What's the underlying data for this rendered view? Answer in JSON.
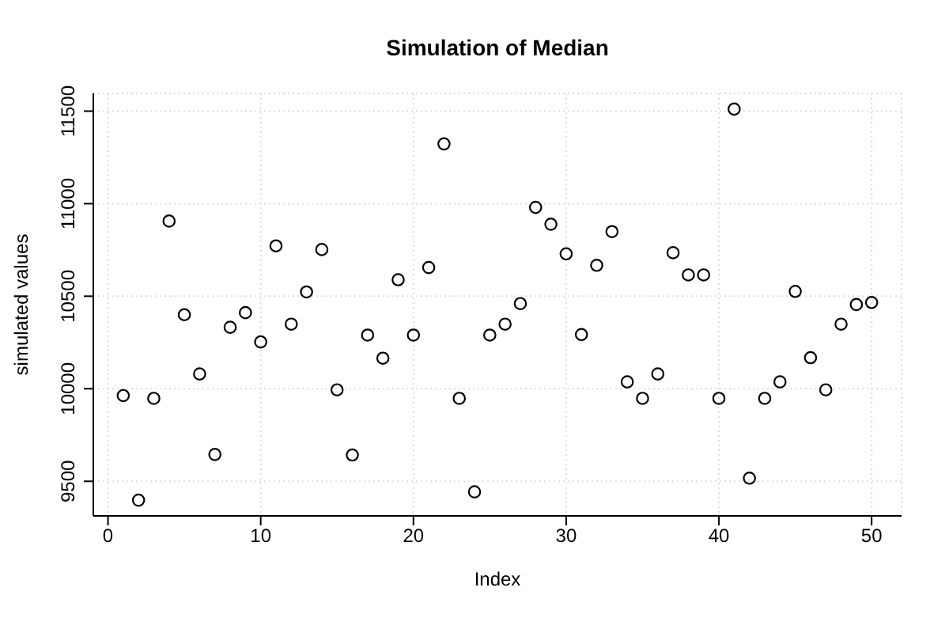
{
  "chart_data": {
    "type": "scatter",
    "title": "Simulation of Median",
    "xlabel": "Index",
    "ylabel": "simulated values",
    "x": [
      1,
      2,
      3,
      4,
      5,
      6,
      7,
      8,
      9,
      10,
      11,
      12,
      13,
      14,
      15,
      16,
      17,
      18,
      19,
      20,
      21,
      22,
      23,
      24,
      25,
      26,
      27,
      28,
      29,
      30,
      31,
      32,
      33,
      34,
      35,
      36,
      37,
      38,
      39,
      40,
      41,
      42,
      43,
      44,
      45,
      46,
      47,
      48,
      49,
      50
    ],
    "values": [
      9963,
      9398,
      9948,
      10906,
      10400,
      10080,
      9645,
      10332,
      10411,
      10253,
      10772,
      10349,
      10523,
      10752,
      9994,
      9642,
      10290,
      10165,
      10589,
      10290,
      10655,
      11323,
      9948,
      9443,
      10290,
      10349,
      10460,
      10980,
      10889,
      10729,
      10293,
      10667,
      10849,
      10037,
      9948,
      10080,
      10735,
      10615,
      10615,
      9948,
      11511,
      9517,
      9948,
      10037,
      10526,
      10168,
      9994,
      10349,
      10455,
      10466
    ],
    "color": "#000000",
    "marker": "circle",
    "grid": true,
    "xlim": [
      -0.96,
      51.96
    ],
    "xticks": [
      0,
      10,
      20,
      30,
      40,
      50
    ],
    "ylim": [
      9313,
      11596
    ],
    "yticks": [
      9500,
      10000,
      10500,
      11000,
      11500
    ]
  }
}
